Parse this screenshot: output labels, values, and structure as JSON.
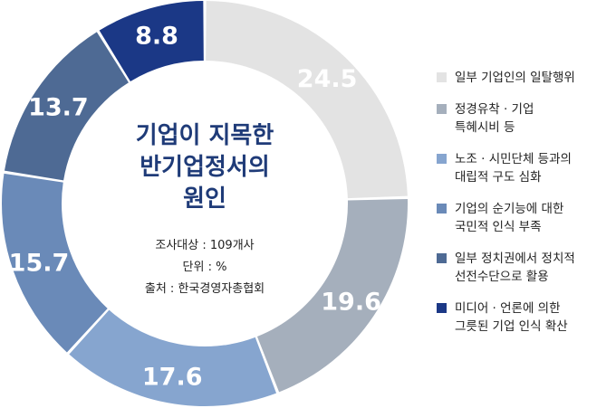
{
  "chart_data": {
    "type": "pie",
    "donut": true,
    "title_lines": [
      "기업이 지목한",
      "반기업정서의",
      "원인"
    ],
    "notes": [
      "조사대상 : 109개사",
      "단위 : %",
      "출처 : 한국경영자총협회"
    ],
    "unit": "%",
    "slices": [
      {
        "label": "일부 기업인의 일탈행위",
        "value": 24.5,
        "display": "24.5",
        "color": "#e3e3e3"
      },
      {
        "label": "정경유착 · 기업\n특혜시비 등",
        "value": 19.6,
        "display": "19.6",
        "color": "#a5afbc"
      },
      {
        "label": "노조 · 시민단체 등과의\n대립적 구도 심화",
        "value": 17.6,
        "display": "17.6",
        "color": "#86a5cf"
      },
      {
        "label": "기업의 순기능에 대한\n국민적 인식 부족",
        "value": 15.7,
        "display": "15.7",
        "color": "#6a8ab8"
      },
      {
        "label": "일부 정치권에서 정치적\n선전수단으로 활용",
        "value": 13.7,
        "display": "13.7",
        "color": "#4e6a94"
      },
      {
        "label": "미디어 · 언론에 의한\n그릇된 기업 인식 확산",
        "value": 8.8,
        "display": "8.8",
        "color": "#1b3886"
      }
    ]
  }
}
